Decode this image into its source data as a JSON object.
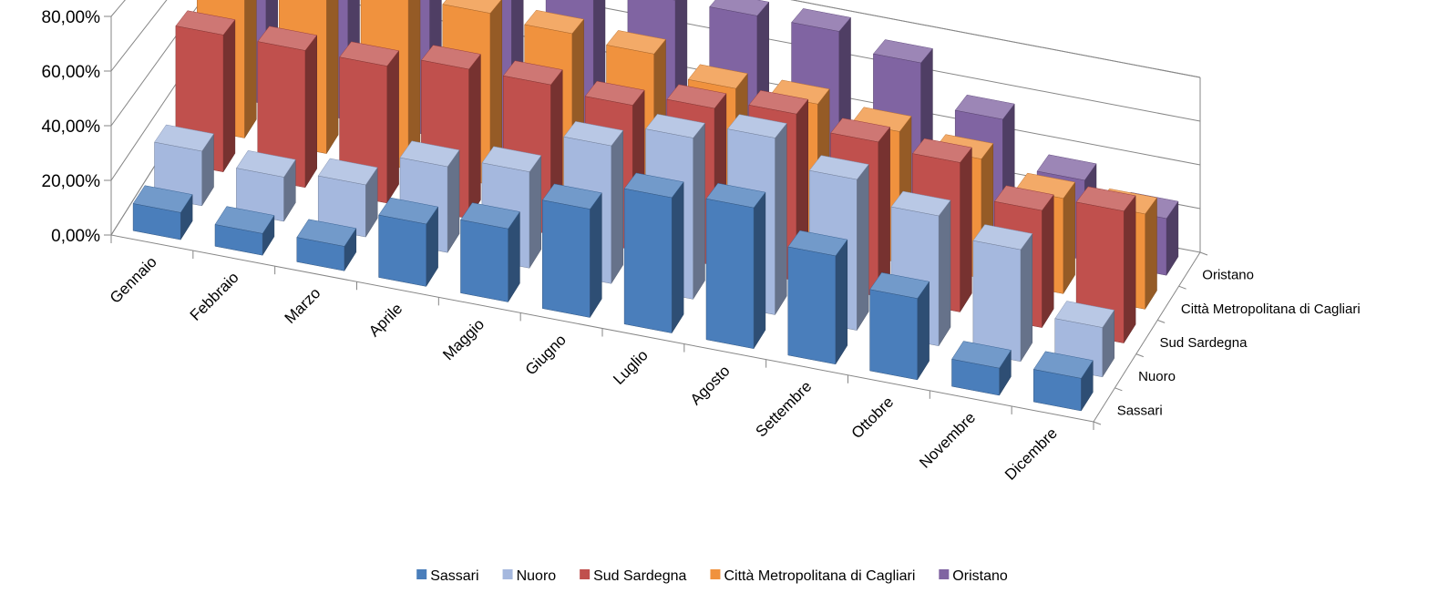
{
  "chart_data": {
    "type": "bar",
    "subtype": "3d-clustered-depth",
    "title": "",
    "xlabel": "",
    "ylabel": "",
    "ylim": [
      0,
      0.8
    ],
    "y_ticks": [
      "0,00%",
      "20,00%",
      "40,00%",
      "60,00%",
      "80,00%"
    ],
    "categories": [
      "Gennaio",
      "Febbraio",
      "Marzo",
      "Aprile",
      "Maggio",
      "Giugno",
      "Luglio",
      "Agosto",
      "Settembre",
      "Ottobre",
      "Novembre",
      "Dicembre"
    ],
    "series": [
      {
        "name": "Sassari",
        "color": "#4a7ebb",
        "values": [
          0.1,
          0.08,
          0.09,
          0.23,
          0.27,
          0.4,
          0.5,
          0.52,
          0.4,
          0.3,
          0.1,
          0.12
        ]
      },
      {
        "name": "Nuoro",
        "color": "#a5b8de",
        "values": [
          0.21,
          0.17,
          0.2,
          0.33,
          0.37,
          0.53,
          0.62,
          0.68,
          0.58,
          0.5,
          0.43,
          0.19
        ]
      },
      {
        "name": "Sud Sardegna",
        "color": "#c0504d",
        "values": [
          0.55,
          0.55,
          0.55,
          0.6,
          0.6,
          0.58,
          0.63,
          0.67,
          0.62,
          0.6,
          0.47,
          0.53
        ]
      },
      {
        "name": "Città Metropolitana di Cagliari",
        "color": "#f0923e",
        "values": [
          0.78,
          0.75,
          0.72,
          0.72,
          0.7,
          0.68,
          0.6,
          0.6,
          0.55,
          0.5,
          0.4,
          0.4
        ]
      },
      {
        "name": "Oristano",
        "color": "#8064a2",
        "values": [
          0.71,
          0.7,
          0.72,
          0.78,
          0.77,
          0.8,
          0.8,
          0.8,
          0.73,
          0.55,
          0.35,
          0.25
        ]
      }
    ],
    "grid": true,
    "legend": "bottom",
    "colors": {
      "axis": "#868686",
      "grid": "#868686"
    }
  }
}
